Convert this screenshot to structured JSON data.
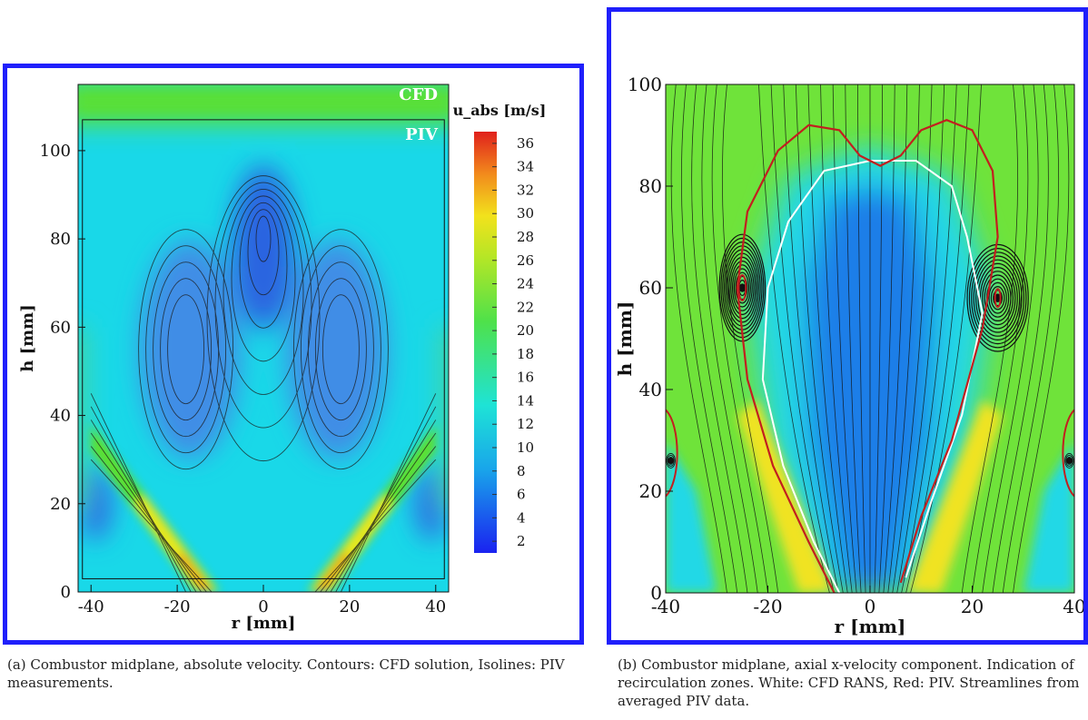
{
  "chart_data": [
    {
      "type": "heatmap",
      "panel": "a",
      "caption": "(a) Combustor midplane, absolute velocity.  Contours:  CFD solution, Isolines: PIV measurements.",
      "xlabel": "r [mm]",
      "ylabel": "h [mm]",
      "xlim": [
        -43,
        43
      ],
      "ylim": [
        0,
        115
      ],
      "xticks": [
        -40,
        -20,
        0,
        20,
        40
      ],
      "yticks": [
        0,
        20,
        40,
        60,
        80,
        100
      ],
      "annotations": [
        "CFD",
        "PIV"
      ],
      "piv_window": {
        "r": [
          -42,
          42
        ],
        "h": [
          3,
          107
        ]
      },
      "colorbar": {
        "title": "u_abs [m/s]",
        "ticks": [
          36,
          34,
          32,
          30,
          28,
          26,
          24,
          22,
          20,
          18,
          16,
          14,
          12,
          10,
          8,
          6,
          4,
          2
        ],
        "range": [
          1,
          37
        ]
      },
      "features": [
        {
          "label": "low-velocity core",
          "r": 0,
          "h": 84,
          "u_abs": 2
        },
        {
          "label": "left jet",
          "r": [
            -12,
            -40
          ],
          "h": [
            0,
            30
          ],
          "u_abs_max": 30
        },
        {
          "label": "right jet",
          "r": [
            12,
            40
          ],
          "h": [
            0,
            30
          ],
          "u_abs_max": 30
        },
        {
          "label": "top inflow",
          "h": [
            107,
            115
          ],
          "u_abs": 20
        }
      ],
      "colors": {
        "low": "#1a33e6",
        "mid": "#19d8e8",
        "green": "#5de02a",
        "yellow": "#f1e81d",
        "high": "#e0201c"
      }
    },
    {
      "type": "heatmap",
      "panel": "b",
      "caption": "(b) Combustor midplane, axial x-velocity component. Indication of recirculation zones. White: CFD RANS, Red: PIV. Streamlines from averaged PIV data.",
      "xlabel": "r [mm]",
      "ylabel": "h [mm]",
      "xlim": [
        -40,
        40
      ],
      "ylim": [
        0,
        100
      ],
      "xticks": [
        -40,
        -20,
        0,
        20,
        40
      ],
      "yticks": [
        0,
        20,
        40,
        60,
        80,
        100
      ],
      "vortex_centers": [
        {
          "r": -25,
          "h": 60
        },
        {
          "r": 25,
          "h": 58
        },
        {
          "r": -39,
          "h": 26
        },
        {
          "r": 39,
          "h": 26
        }
      ],
      "recirculation_outline": {
        "red_piv": [
          [
            -7,
            0
          ],
          [
            -12,
            10
          ],
          [
            -19,
            25
          ],
          [
            -24,
            42
          ],
          [
            -26,
            60
          ],
          [
            -24,
            75
          ],
          [
            -18,
            87
          ],
          [
            -12,
            92
          ],
          [
            -6,
            91
          ],
          [
            -2,
            86
          ],
          [
            2,
            84
          ],
          [
            6,
            86
          ],
          [
            10,
            91
          ],
          [
            15,
            93
          ],
          [
            20,
            91
          ],
          [
            24,
            83
          ],
          [
            25,
            70
          ],
          [
            22,
            52
          ],
          [
            16,
            30
          ],
          [
            10,
            15
          ],
          [
            6,
            2
          ]
        ],
        "white_cfd": [
          [
            -6,
            0
          ],
          [
            -11,
            10
          ],
          [
            -17,
            25
          ],
          [
            -21,
            42
          ],
          [
            -20,
            60
          ],
          [
            -16,
            73
          ],
          [
            -9,
            83
          ],
          [
            0,
            85
          ],
          [
            9,
            85
          ],
          [
            16,
            80
          ],
          [
            19,
            70
          ],
          [
            22,
            55
          ],
          [
            18,
            35
          ],
          [
            12,
            18
          ],
          [
            7,
            3
          ]
        ]
      },
      "colors": {
        "blue": "#1a7ee8",
        "cyan": "#24d8e6",
        "green": "#6fe33a",
        "yellow": "#f0e324",
        "red_line": "#c21f1f",
        "white_line": "#ffffff"
      }
    }
  ]
}
